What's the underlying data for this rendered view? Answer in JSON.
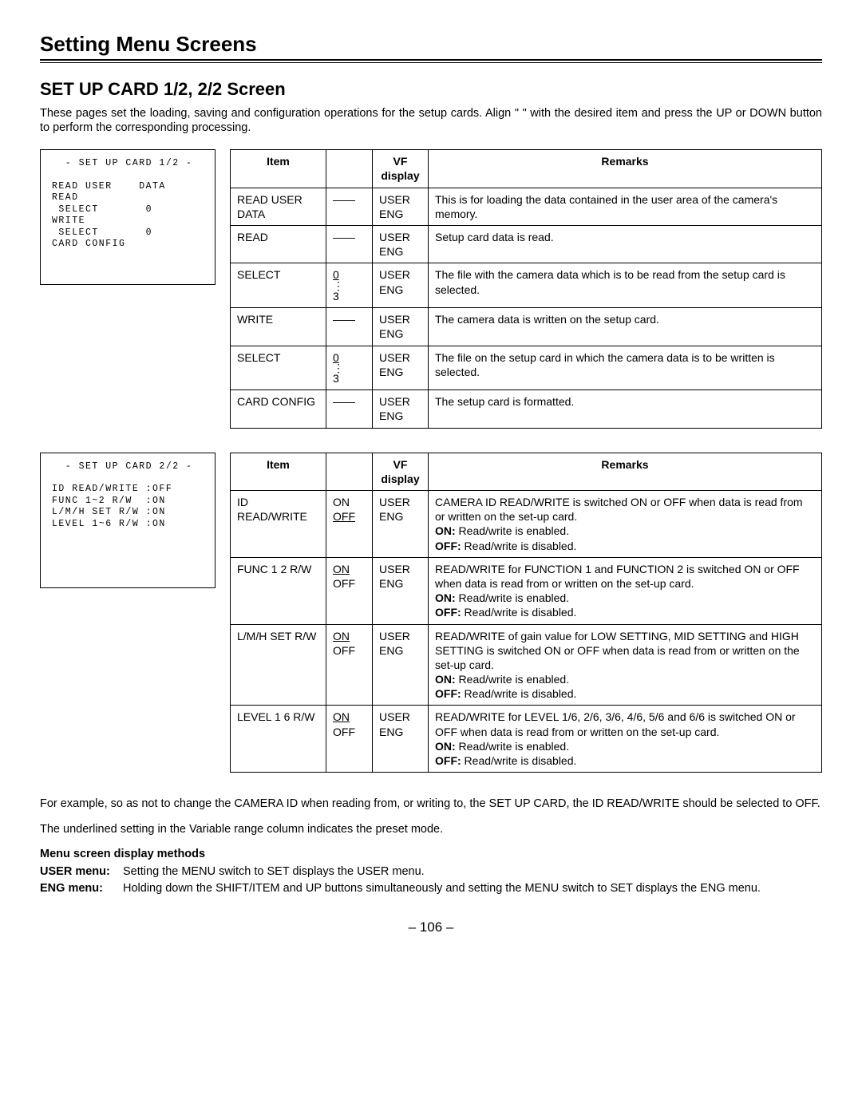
{
  "mainTitle": "Setting Menu Screens",
  "subTitle": "SET UP CARD 1/2, 2/2 Screen",
  "intro": "These pages set the loading, saving and configuration operations for the setup cards. Align \"   \" with the desired item and press the UP or DOWN button to perform the corresponding processing.",
  "screen1": {
    "title": "- SET UP CARD 1/2 -",
    "lines": [
      "READ USER    DATA",
      "READ",
      " SELECT       0",
      "WRITE",
      " SELECT       0",
      "CARD CONFIG"
    ]
  },
  "screen2": {
    "title": "- SET UP CARD 2/2 -",
    "lines": [
      "ID READ/WRITE :OFF",
      "FUNC 1~2 R/W  :ON",
      "L/M/H SET R/W :ON",
      "LEVEL 1~6 R/W :ON"
    ]
  },
  "table1": {
    "headers": [
      "Item",
      "",
      "VF display",
      "Remarks"
    ],
    "rows": [
      {
        "item": "READ USER DATA",
        "var": "——",
        "vf": "USER\nENG",
        "remarks": "This is for loading the data contained in the user area of the camera's memory."
      },
      {
        "item": "READ",
        "var": "——",
        "vf": "USER\nENG",
        "remarks": "Setup card data is read."
      },
      {
        "item": "SELECT",
        "var_u": "0",
        "var_dots": true,
        "var_end": "3",
        "vf": "USER\nENG",
        "remarks": "The file with the camera data which is to be read from the setup card is selected."
      },
      {
        "item": "WRITE",
        "var": "——",
        "vf": "USER\nENG",
        "remarks": "The camera data is written on the setup card."
      },
      {
        "item": "SELECT",
        "var_u": "0",
        "var_dots": true,
        "var_end": "3",
        "vf": "USER\nENG",
        "remarks": "The file on the setup card in which the camera data is to be written is selected."
      },
      {
        "item": "CARD CONFIG",
        "var": "——",
        "vf": "USER\nENG",
        "remarks": "The setup card is formatted."
      }
    ]
  },
  "table2": {
    "headers": [
      "Item",
      "",
      "VF display",
      "Remarks"
    ],
    "rows": [
      {
        "item": "ID READ/WRITE",
        "var1": "ON",
        "var2_u": "OFF",
        "vf": "USER\nENG",
        "remarks_plain": "CAMERA ID READ/WRITE is switched ON or OFF when data is read from or written on the set-up card.",
        "on": "Read/write is enabled.",
        "off": "Read/write is disabled."
      },
      {
        "item": "FUNC 1   2 R/W",
        "var1_u": "ON",
        "var2": "OFF",
        "vf": "USER\nENG",
        "remarks_plain": "READ/WRITE for FUNCTION 1 and FUNCTION 2 is switched ON or OFF when data is read from or written on the set-up card.",
        "on": "Read/write is enabled.",
        "off": "Read/write is disabled."
      },
      {
        "item": "L/M/H SET R/W",
        "var1_u": "ON",
        "var2": "OFF",
        "vf": "USER\nENG",
        "remarks_plain": "READ/WRITE of gain value for LOW SETTING, MID SETTING and HIGH SETTING is switched ON or OFF when data is read from or written on the set-up card.",
        "on": "Read/write is enabled.",
        "off": "Read/write is disabled."
      },
      {
        "item": "LEVEL 1   6 R/W",
        "var1_u": "ON",
        "var2": "OFF",
        "vf": "USER\nENG",
        "remarks_plain": "READ/WRITE for LEVEL 1/6, 2/6, 3/6, 4/6, 5/6 and 6/6 is switched ON or OFF when data is read from or written on the set-up card.",
        "on": "Read/write is enabled.",
        "off": "Read/write is disabled."
      }
    ]
  },
  "footerExample": "For example, so as not to change the CAMERA ID when reading from, or writing to, the SET UP CARD, the ID READ/WRITE should be selected to OFF.",
  "footerUnderline": "The underlined setting in the Variable range column indicates the preset mode.",
  "menuMethodsTitle": "Menu screen display methods",
  "userMenuLabel": "USER menu:",
  "userMenuText": "Setting the MENU switch to SET displays the USER menu.",
  "engMenuLabel": "ENG menu:",
  "engMenuText": "Holding down the SHIFT/ITEM and UP buttons simultaneously and setting the MENU switch to SET displays the ENG menu.",
  "pageNum": "– 106 –",
  "onLabel": "ON:",
  "offLabel": "OFF:"
}
